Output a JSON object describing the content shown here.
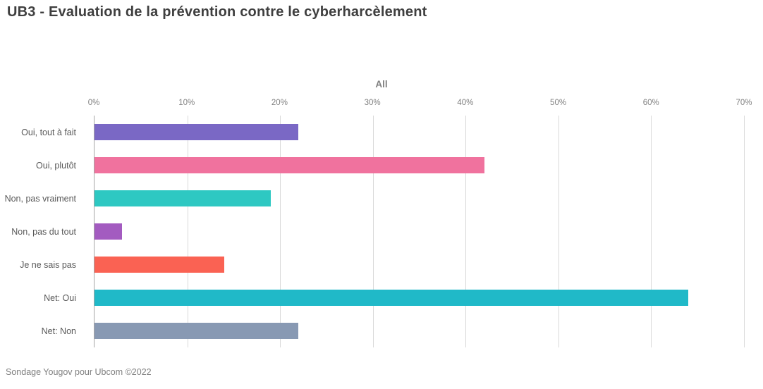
{
  "header": {
    "title": "UB3 - Evaluation de la prévention contre le cyberharcèlement"
  },
  "chart_data": {
    "type": "bar",
    "orientation": "horizontal",
    "title": "UB3 - Evaluation de la prévention contre le cyberharcèlement",
    "group_label": "All",
    "categories": [
      "Oui, tout à fait",
      "Oui, plutôt",
      "Non, pas vraiment",
      "Non, pas du tout",
      "Je ne sais pas",
      "Net: Oui",
      "Net: Non"
    ],
    "values": [
      22,
      42,
      19,
      3,
      14,
      64,
      22
    ],
    "unit": "%",
    "bar_colors": [
      "#7a68c5",
      "#f0729e",
      "#2ec8c2",
      "#a35bc0",
      "#fa6253",
      "#20b9c8",
      "#8899b3"
    ],
    "xlim": [
      0,
      70
    ],
    "x_ticks": [
      "0%",
      "10%",
      "20%",
      "30%",
      "40%",
      "50%",
      "60%",
      "70%"
    ],
    "grid": true,
    "gridline_color": "#d9d9d9",
    "axis_line_color": "#a6a6a6",
    "legend": false
  },
  "footer": {
    "source": "Sondage Yougov pour Ubcom ©2022"
  }
}
